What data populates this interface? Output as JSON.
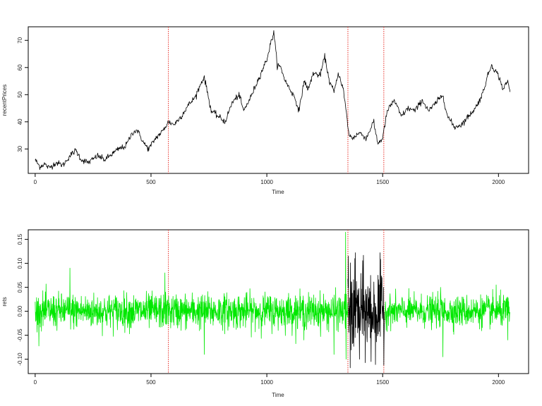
{
  "chart_data": [
    {
      "type": "line",
      "xlabel": "Time",
      "ylabel": "recentPrices",
      "xlim": [
        -30,
        2130
      ],
      "ylim": [
        21,
        75
      ],
      "xticks": [
        0,
        500,
        1000,
        1500,
        2000
      ],
      "yticks": [
        30,
        40,
        50,
        60,
        70
      ],
      "xtick_labels": [
        "0",
        "500",
        "1000",
        "1500",
        "2000"
      ],
      "ytick_labels": [
        "30",
        "40",
        "50",
        "60",
        "70"
      ],
      "grid": false,
      "legend": "none",
      "vlines": [
        575,
        1350,
        1505
      ],
      "vline_color": "#e8312a",
      "series": [
        {
          "color": "#000000",
          "x": [
            0,
            20,
            40,
            60,
            90,
            120,
            150,
            175,
            200,
            230,
            270,
            300,
            330,
            360,
            390,
            420,
            440,
            470,
            490,
            520,
            550,
            575,
            600,
            630,
            660,
            690,
            720,
            730,
            760,
            790,
            820,
            850,
            880,
            900,
            930,
            960,
            1000,
            1020,
            1030,
            1045,
            1060,
            1080,
            1100,
            1120,
            1140,
            1160,
            1180,
            1200,
            1230,
            1250,
            1270,
            1290,
            1310,
            1330,
            1345,
            1355,
            1370,
            1400,
            1430,
            1460,
            1480,
            1500,
            1520,
            1550,
            1580,
            1610,
            1640,
            1670,
            1700,
            1730,
            1760,
            1780,
            1810,
            1840,
            1870,
            1900,
            1930,
            1950,
            1970,
            2000,
            2020,
            2040,
            2050
          ],
          "y": [
            26,
            23.5,
            24.5,
            23,
            25,
            24,
            27.5,
            29.5,
            26,
            25,
            27.5,
            26,
            28,
            30,
            31,
            36,
            37,
            32,
            30,
            34,
            36.5,
            40,
            39,
            42,
            46,
            49,
            55,
            56.5,
            44,
            42,
            40,
            47,
            50,
            44,
            49,
            55,
            63,
            70,
            73,
            61,
            60,
            55,
            52,
            49,
            44,
            55,
            52,
            58,
            57,
            64,
            55,
            51,
            58,
            52,
            42,
            35,
            34,
            36,
            34,
            40,
            32,
            34,
            44,
            48,
            42,
            45,
            44,
            48,
            44,
            47,
            50,
            42,
            38,
            39,
            42,
            45,
            50,
            56,
            61,
            57,
            52,
            55,
            51
          ]
        }
      ]
    },
    {
      "type": "line",
      "xlabel": "Time",
      "ylabel": "rets",
      "xlim": [
        -30,
        2130
      ],
      "ylim": [
        -0.13,
        0.17
      ],
      "xticks": [
        0,
        500,
        1000,
        1500,
        2000
      ],
      "yticks": [
        -0.1,
        -0.05,
        0.0,
        0.05,
        0.1,
        0.15
      ],
      "xtick_labels": [
        "0",
        "500",
        "1000",
        "1500",
        "2000"
      ],
      "ytick_labels": [
        "-0.10",
        "-0.05",
        "0.00",
        "0.05",
        "0.10",
        "0.15"
      ],
      "grid": false,
      "legend": "none",
      "vlines": [
        575,
        1350,
        1505
      ],
      "vline_color": "#e8312a",
      "series": [
        {
          "color": "#00e800",
          "x_range": [
            0,
            1350
          ],
          "noise_sd": 0.018,
          "spikes": [
            [
              150,
              0.09
            ],
            [
              560,
              0.08
            ],
            [
              730,
              -0.09
            ],
            [
              1160,
              -0.06
            ],
            [
              1290,
              -0.09
            ],
            [
              1340,
              0.165
            ],
            [
              1342,
              -0.1
            ]
          ]
        },
        {
          "color": "#000000",
          "x_range": [
            1350,
            1510
          ],
          "noise_sd": 0.045,
          "spikes": [
            [
              1352,
              0.115
            ],
            [
              1360,
              -0.118
            ],
            [
              1380,
              0.11
            ],
            [
              1400,
              -0.1
            ],
            [
              1450,
              -0.105
            ]
          ]
        },
        {
          "color": "#00e800",
          "x_range": [
            1510,
            2050
          ],
          "noise_sd": 0.016,
          "spikes": [
            [
              1760,
              -0.095
            ],
            [
              1750,
              0.05
            ],
            [
              1990,
              0.055
            ],
            [
              2040,
              -0.06
            ]
          ]
        }
      ]
    }
  ]
}
